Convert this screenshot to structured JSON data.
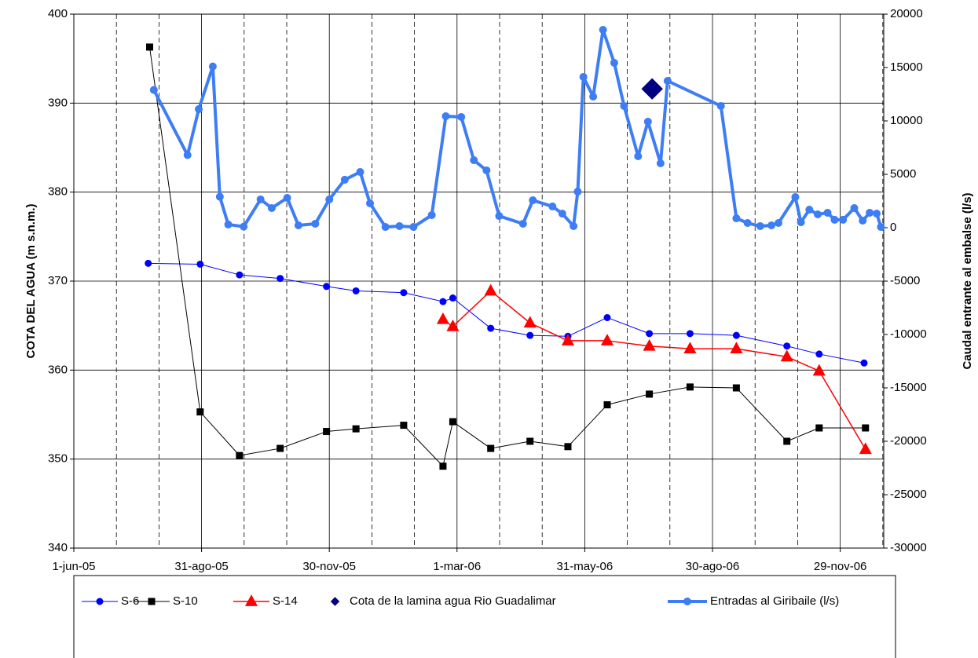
{
  "chart_data": {
    "type": "line",
    "ylabel": "COTA DEL AGUA (m s.n.m.)",
    "y2label": "Caudal entrante al embalse (l/s)",
    "xlim": [
      "2005-06-01",
      "2006-12-30"
    ],
    "xticks": [
      {
        "value": "2005-06-01",
        "label": "1-jun-05"
      },
      {
        "value": "2005-08-31",
        "label": "31-ago-05"
      },
      {
        "value": "2005-11-30",
        "label": "30-nov-05"
      },
      {
        "value": "2006-03-01",
        "label": "1-mar-06"
      },
      {
        "value": "2006-05-31",
        "label": "31-may-06"
      },
      {
        "value": "2006-08-30",
        "label": "30-ago-06"
      },
      {
        "value": "2006-11-29",
        "label": "29-nov-06"
      }
    ],
    "ylim": [
      340,
      400
    ],
    "yticks": [
      340,
      350,
      360,
      370,
      380,
      390,
      400
    ],
    "y2lim": [
      -30000,
      20000
    ],
    "y2ticks": [
      -30000,
      -25000,
      -20000,
      -15000,
      -10000,
      -5000,
      0,
      5000,
      10000,
      15000,
      20000
    ],
    "grid": true,
    "legend": "bottom",
    "series": [
      {
        "name": "S-6",
        "color": "#0000ff",
        "marker": "circle",
        "line_width": 1,
        "x": [
          "2005-07-24",
          "2005-08-30",
          "2005-09-27",
          "2005-10-26",
          "2005-11-28",
          "2005-12-19",
          "2006-01-22",
          "2006-02-19",
          "2006-02-26",
          "2006-03-25",
          "2006-04-22",
          "2006-05-19",
          "2006-06-16",
          "2006-07-16",
          "2006-08-14",
          "2006-09-16",
          "2006-10-22",
          "2006-11-14",
          "2006-12-16"
        ],
        "values": [
          372.0,
          371.9,
          370.7,
          370.3,
          369.4,
          368.9,
          368.7,
          367.7,
          368.1,
          364.7,
          363.9,
          363.8,
          365.9,
          364.1,
          364.1,
          363.9,
          362.7,
          361.8,
          360.8
        ]
      },
      {
        "name": "S-10",
        "color": "#000000",
        "marker": "square",
        "line_width": 1,
        "x": [
          "2005-07-25",
          "2005-08-30",
          "2005-09-27",
          "2005-10-26",
          "2005-11-28",
          "2005-12-19",
          "2006-01-22",
          "2006-02-19",
          "2006-02-26",
          "2006-03-25",
          "2006-04-22",
          "2006-05-19",
          "2006-06-16",
          "2006-07-16",
          "2006-08-14",
          "2006-09-16",
          "2006-10-22",
          "2006-11-14",
          "2006-12-17"
        ],
        "values": [
          396.3,
          355.3,
          350.4,
          351.2,
          353.1,
          353.4,
          353.8,
          349.2,
          354.2,
          351.2,
          352.0,
          351.4,
          356.1,
          357.3,
          358.1,
          358.0,
          352.0,
          353.5,
          353.5
        ]
      },
      {
        "name": "S-14",
        "color": "#ff0000",
        "marker": "triangle",
        "line_width": 1.5,
        "x": [
          "2006-02-19",
          "2006-02-26",
          "2006-03-25",
          "2006-04-22",
          "2006-05-19",
          "2006-06-16",
          "2006-07-16",
          "2006-08-14",
          "2006-09-16",
          "2006-10-22",
          "2006-11-14",
          "2006-12-17"
        ],
        "values": [
          365.7,
          364.9,
          368.9,
          365.3,
          363.3,
          363.3,
          362.7,
          362.4,
          362.4,
          361.5,
          359.9,
          351.1
        ]
      },
      {
        "name": "Cota de la lamina agua Rio Guadalimar",
        "color": "#000080",
        "marker": "diamond",
        "line_width": 0,
        "x": [
          "2006-07-18"
        ],
        "values": [
          391.6
        ]
      },
      {
        "name": "Entradas al Giribaile (l/s)",
        "color": "#3d7df5",
        "marker": "circle",
        "line_width": 4,
        "axis": "y2",
        "x": [
          "2005-07-28",
          "2005-08-21",
          "2005-08-29",
          "2005-09-08",
          "2005-09-13",
          "2005-09-19",
          "2005-09-30",
          "2005-10-12",
          "2005-10-20",
          "2005-10-31",
          "2005-11-08",
          "2005-11-20",
          "2005-11-30",
          "2005-12-11",
          "2005-12-22",
          "2005-12-29",
          "2006-01-09",
          "2006-01-19",
          "2006-01-29",
          "2006-02-11",
          "2006-02-21",
          "2006-03-04",
          "2006-03-13",
          "2006-03-22",
          "2006-03-31",
          "2006-04-17",
          "2006-04-24",
          "2006-05-08",
          "2006-05-15",
          "2006-05-23",
          "2006-05-26",
          "2006-05-30",
          "2006-06-06",
          "2006-06-13",
          "2006-06-21",
          "2006-06-28",
          "2006-07-08",
          "2006-07-15",
          "2006-07-24",
          "2006-07-29",
          "2006-09-05",
          "2006-09-16",
          "2006-09-24",
          "2006-10-03",
          "2006-10-11",
          "2006-10-16",
          "2006-10-28",
          "2006-11-01",
          "2006-11-07",
          "2006-11-13",
          "2006-11-20",
          "2006-11-25",
          "2006-12-01",
          "2006-12-09",
          "2006-12-15",
          "2006-12-20",
          "2006-12-25",
          "2006-12-28"
        ],
        "values": [
          12900,
          6800,
          11100,
          15100,
          2900,
          300,
          100,
          2650,
          1840,
          2790,
          220,
          370,
          2650,
          4490,
          5220,
          2280,
          70,
          150,
          70,
          1180,
          10440,
          10370,
          6320,
          5370,
          1100,
          370,
          2570,
          1990,
          1320,
          150,
          3380,
          14120,
          12280,
          18530,
          15440,
          11400,
          6690,
          9930,
          6030,
          13750,
          11400,
          880,
          440,
          150,
          220,
          440,
          2870,
          510,
          1690,
          1250,
          1400,
          740,
          740,
          1840,
          660,
          1400,
          1320,
          70
        ]
      }
    ]
  }
}
